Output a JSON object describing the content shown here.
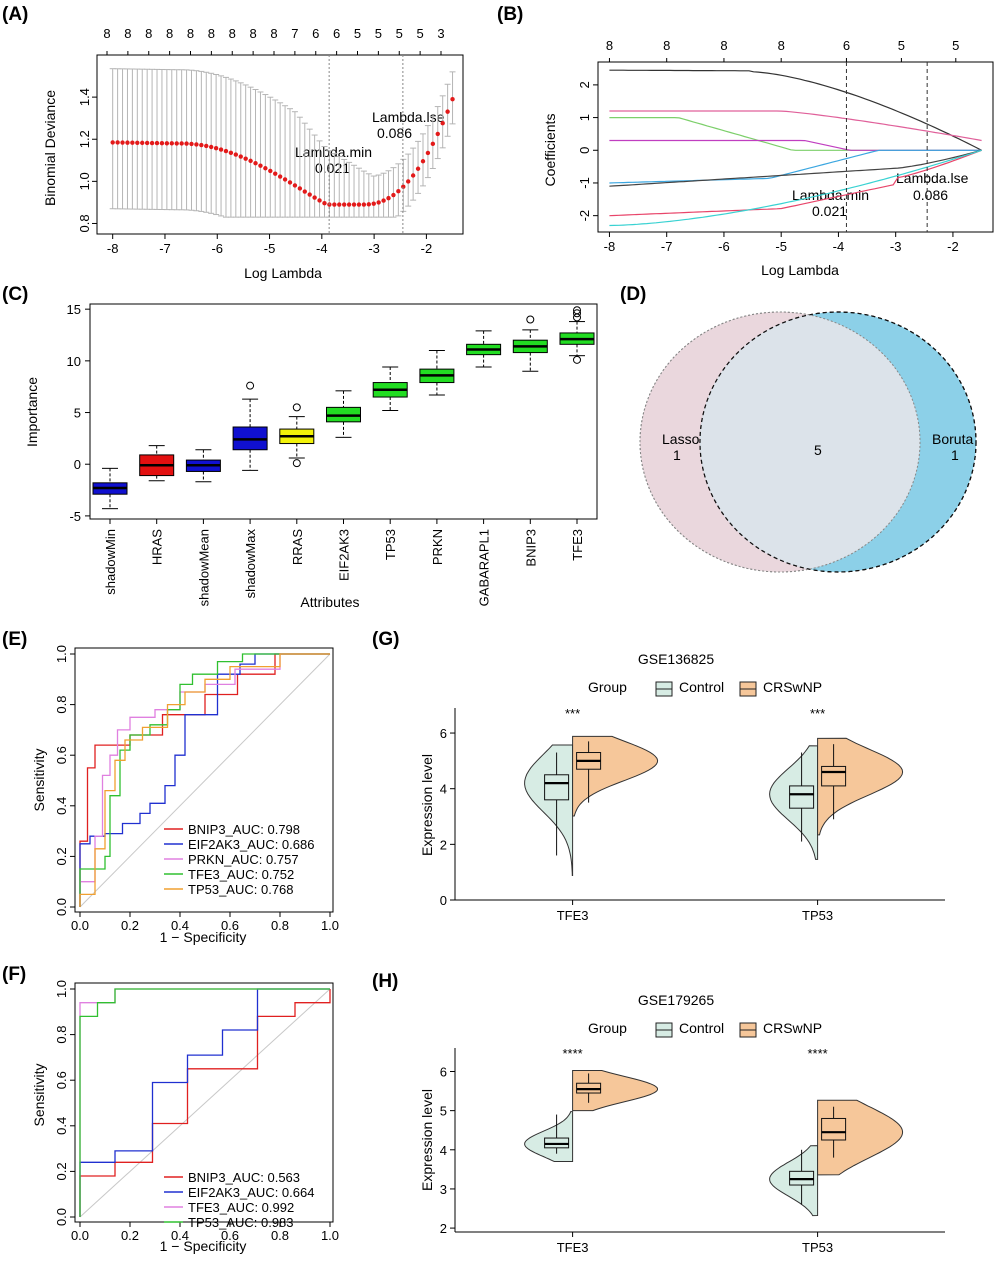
{
  "panels": {
    "A": {
      "label": "(A)"
    },
    "B": {
      "label": "(B)"
    },
    "C": {
      "label": "(C)"
    },
    "D": {
      "label": "(D)"
    },
    "E": {
      "label": "(E)"
    },
    "F": {
      "label": "(F)"
    },
    "G": {
      "label": "(G)"
    },
    "H": {
      "label": "(H)"
    }
  },
  "chart_data": [
    {
      "id": "A",
      "type": "scatter",
      "title": "",
      "xlabel": "Log Lambda",
      "ylabel": "Binomial Deviance",
      "xlim": [
        -8.3,
        -1.3
      ],
      "ylim": [
        0.75,
        1.6
      ],
      "xticks": [
        -8,
        -7,
        -6,
        -5,
        -4,
        -3,
        -2
      ],
      "yticks": [
        0.8,
        1.0,
        1.2,
        1.4
      ],
      "top_ticks": [
        "8",
        "8",
        "8",
        "8",
        "8",
        "8",
        "8",
        "8",
        "8",
        "7",
        "6",
        "6",
        "5",
        "5",
        "5",
        "5",
        "3"
      ],
      "lambda_min": {
        "label": "Lambda.min",
        "value": "0.021",
        "x": -3.86
      },
      "lambda_1se": {
        "label": "Lambda.lse",
        "value": "0.086",
        "x": -2.45
      }
    },
    {
      "id": "B",
      "type": "line",
      "title": "",
      "xlabel": "Log Lambda",
      "ylabel": "Coefficients",
      "xlim": [
        -8.2,
        -1.3
      ],
      "ylim": [
        -2.5,
        2.7
      ],
      "xticks": [
        -8,
        -7,
        -6,
        -5,
        -4,
        -3,
        -2
      ],
      "yticks": [
        -2,
        -1,
        0,
        1,
        2
      ],
      "top_ticks": [
        "8",
        "8",
        "8",
        "8",
        "6",
        "5",
        "5"
      ],
      "lambda_min": {
        "label": "Lambda.min",
        "value": "0.021",
        "x": -3.86
      },
      "lambda_1se": {
        "label": "Lambda.lse",
        "value": "0.086",
        "x": -2.45
      },
      "series": [
        {
          "name": "s1",
          "color": "#333333",
          "start": 2.45
        },
        {
          "name": "s2",
          "color": "#e0609a",
          "start": 1.2
        },
        {
          "name": "s3",
          "color": "#7ccf6a",
          "start": 1.0
        },
        {
          "name": "s4",
          "color": "#c03ec0",
          "start": 0.3
        },
        {
          "name": "s5",
          "color": "#3aa6e0",
          "start": -1.0
        },
        {
          "name": "s6",
          "color": "#444444",
          "start": -1.1
        },
        {
          "name": "s7",
          "color": "#e8456a",
          "start": -2.0
        },
        {
          "name": "s8",
          "color": "#39d2d2",
          "start": -2.3
        }
      ]
    },
    {
      "id": "C",
      "type": "box",
      "title": "",
      "xlabel": "Attributes",
      "ylabel": "Importance",
      "ylim": [
        -5.3,
        15.5
      ],
      "yticks": [
        -5,
        0,
        5,
        10,
        15
      ],
      "categories": [
        "shadowMin",
        "HRAS",
        "shadowMean",
        "shadowMax",
        "RRAS",
        "EIF2AK3",
        "TP53",
        "PRKN",
        "GABARAPL1",
        "BNIP3",
        "TFE3"
      ],
      "colors": [
        "#1010d0",
        "#e31010",
        "#1010d0",
        "#1010d0",
        "#f2f20a",
        "#22dd22",
        "#22dd22",
        "#22dd22",
        "#22dd22",
        "#22dd22",
        "#22dd22"
      ],
      "boxes": [
        {
          "min": -4.3,
          "q1": -2.9,
          "med": -2.3,
          "q3": -1.8,
          "max": -0.4
        },
        {
          "min": -1.6,
          "q1": -1.1,
          "med": -0.1,
          "q3": 0.9,
          "max": 1.8
        },
        {
          "min": -1.7,
          "q1": -0.7,
          "med": -0.1,
          "q3": 0.4,
          "max": 1.4
        },
        {
          "min": -0.6,
          "q1": 1.4,
          "med": 2.4,
          "q3": 3.6,
          "max": 6.3
        },
        {
          "min": 0.6,
          "q1": 2.0,
          "med": 2.7,
          "q3": 3.4,
          "max": 4.6
        },
        {
          "min": 2.6,
          "q1": 4.1,
          "med": 4.7,
          "q3": 5.5,
          "max": 7.1
        },
        {
          "min": 5.2,
          "q1": 6.5,
          "med": 7.2,
          "q3": 7.9,
          "max": 9.4
        },
        {
          "min": 6.7,
          "q1": 7.9,
          "med": 8.6,
          "q3": 9.2,
          "max": 11.0
        },
        {
          "min": 9.4,
          "q1": 10.6,
          "med": 11.1,
          "q3": 11.6,
          "max": 12.9
        },
        {
          "min": 9.0,
          "q1": 10.8,
          "med": 11.4,
          "q3": 12.0,
          "max": 13.0
        },
        {
          "min": 10.5,
          "q1": 11.6,
          "med": 12.1,
          "q3": 12.7,
          "max": 13.8
        }
      ],
      "outliers": [
        [
          3,
          7.6
        ],
        [
          4,
          5.5
        ],
        [
          4,
          0.1
        ],
        [
          9,
          14.0
        ],
        [
          10,
          14.2
        ],
        [
          10,
          14.6
        ],
        [
          10,
          14.9
        ],
        [
          10,
          10.1
        ]
      ]
    },
    {
      "id": "D",
      "type": "venn",
      "sets": [
        {
          "name": "Lasso",
          "only": "1",
          "color": "#ead7dd"
        },
        {
          "name": "Boruta",
          "only": "1",
          "color": "#7fcbe6"
        }
      ],
      "intersection": "5"
    },
    {
      "id": "E",
      "type": "line",
      "title": "",
      "xlabel": "1 − Specificity",
      "ylabel": "Sensitivity",
      "xlim": [
        0,
        1
      ],
      "ylim": [
        0,
        1
      ],
      "xticks": [
        "0.0",
        "0.2",
        "0.4",
        "0.6",
        "0.8",
        "1.0"
      ],
      "yticks": [
        "0.0",
        "0.2",
        "0.4",
        "0.6",
        "0.8",
        "1.0"
      ],
      "legend": [
        {
          "label": "BNIP3_AUC: 0.798",
          "color": "#e02020"
        },
        {
          "label": "EIF2AK3_AUC: 0.686",
          "color": "#2030d0"
        },
        {
          "label": "PRKN_AUC: 0.757",
          "color": "#e080e0"
        },
        {
          "label": "TFE3_AUC: 0.752",
          "color": "#30c030"
        },
        {
          "label": "TP53_AUC: 0.768",
          "color": "#f0a030"
        }
      ],
      "curves": [
        [
          [
            0,
            0
          ],
          [
            0,
            0.26
          ],
          [
            0.03,
            0.26
          ],
          [
            0.03,
            0.55
          ],
          [
            0.06,
            0.55
          ],
          [
            0.06,
            0.64
          ],
          [
            0.2,
            0.64
          ],
          [
            0.2,
            0.68
          ],
          [
            0.33,
            0.68
          ],
          [
            0.33,
            0.76
          ],
          [
            0.5,
            0.76
          ],
          [
            0.5,
            0.84
          ],
          [
            0.63,
            0.84
          ],
          [
            0.63,
            0.92
          ],
          [
            0.78,
            0.92
          ],
          [
            0.78,
            1.0
          ],
          [
            1,
            1
          ]
        ],
        [
          [
            0,
            0
          ],
          [
            0,
            0.25
          ],
          [
            0.04,
            0.25
          ],
          [
            0.04,
            0.28
          ],
          [
            0.1,
            0.28
          ],
          [
            0.1,
            0.29
          ],
          [
            0.17,
            0.29
          ],
          [
            0.17,
            0.33
          ],
          [
            0.24,
            0.33
          ],
          [
            0.24,
            0.37
          ],
          [
            0.28,
            0.37
          ],
          [
            0.28,
            0.41
          ],
          [
            0.34,
            0.41
          ],
          [
            0.34,
            0.48
          ],
          [
            0.38,
            0.48
          ],
          [
            0.38,
            0.6
          ],
          [
            0.42,
            0.6
          ],
          [
            0.42,
            0.76
          ],
          [
            0.55,
            0.76
          ],
          [
            0.55,
            0.92
          ],
          [
            0.64,
            0.92
          ],
          [
            0.64,
            0.96
          ],
          [
            0.7,
            0.96
          ],
          [
            0.7,
            1.0
          ],
          [
            1,
            1
          ]
        ],
        [
          [
            0,
            0
          ],
          [
            0,
            0.1
          ],
          [
            0.06,
            0.1
          ],
          [
            0.06,
            0.28
          ],
          [
            0.09,
            0.28
          ],
          [
            0.09,
            0.52
          ],
          [
            0.12,
            0.52
          ],
          [
            0.12,
            0.6
          ],
          [
            0.15,
            0.6
          ],
          [
            0.15,
            0.7
          ],
          [
            0.2,
            0.7
          ],
          [
            0.2,
            0.75
          ],
          [
            0.3,
            0.75
          ],
          [
            0.3,
            0.78
          ],
          [
            0.4,
            0.78
          ],
          [
            0.4,
            0.85
          ],
          [
            0.5,
            0.85
          ],
          [
            0.5,
            0.88
          ],
          [
            0.62,
            0.88
          ],
          [
            0.62,
            0.94
          ],
          [
            0.8,
            0.94
          ],
          [
            0.8,
            1.0
          ],
          [
            1,
            1
          ]
        ],
        [
          [
            0,
            0
          ],
          [
            0,
            0.15
          ],
          [
            0.1,
            0.15
          ],
          [
            0.1,
            0.2
          ],
          [
            0.12,
            0.2
          ],
          [
            0.12,
            0.44
          ],
          [
            0.16,
            0.44
          ],
          [
            0.16,
            0.62
          ],
          [
            0.2,
            0.62
          ],
          [
            0.2,
            0.68
          ],
          [
            0.28,
            0.68
          ],
          [
            0.28,
            0.72
          ],
          [
            0.35,
            0.72
          ],
          [
            0.35,
            0.78
          ],
          [
            0.4,
            0.78
          ],
          [
            0.4,
            0.88
          ],
          [
            0.45,
            0.88
          ],
          [
            0.45,
            0.92
          ],
          [
            0.55,
            0.92
          ],
          [
            0.55,
            0.97
          ],
          [
            0.65,
            0.97
          ],
          [
            0.65,
            1.0
          ],
          [
            1,
            1
          ]
        ],
        [
          [
            0,
            0
          ],
          [
            0,
            0.05
          ],
          [
            0.06,
            0.05
          ],
          [
            0.06,
            0.23
          ],
          [
            0.1,
            0.23
          ],
          [
            0.1,
            0.46
          ],
          [
            0.14,
            0.46
          ],
          [
            0.14,
            0.58
          ],
          [
            0.18,
            0.58
          ],
          [
            0.18,
            0.66
          ],
          [
            0.25,
            0.66
          ],
          [
            0.25,
            0.71
          ],
          [
            0.35,
            0.71
          ],
          [
            0.35,
            0.8
          ],
          [
            0.42,
            0.8
          ],
          [
            0.42,
            0.85
          ],
          [
            0.5,
            0.85
          ],
          [
            0.5,
            0.9
          ],
          [
            0.6,
            0.9
          ],
          [
            0.6,
            0.95
          ],
          [
            0.8,
            0.95
          ],
          [
            0.8,
            1.0
          ],
          [
            1,
            1
          ]
        ]
      ]
    },
    {
      "id": "F",
      "type": "line",
      "title": "",
      "xlabel": "1 − Specificity",
      "ylabel": "Sensitivity",
      "xlim": [
        0,
        1
      ],
      "ylim": [
        0,
        1
      ],
      "xticks": [
        "0.0",
        "0.2",
        "0.4",
        "0.6",
        "0.8",
        "1.0"
      ],
      "yticks": [
        "0.0",
        "0.2",
        "0.4",
        "0.6",
        "0.8",
        "1.0"
      ],
      "legend": [
        {
          "label": "BNIP3_AUC: 0.563",
          "color": "#e02020"
        },
        {
          "label": "EIF2AK3_AUC: 0.664",
          "color": "#2030d0"
        },
        {
          "label": "TFE3_AUC: 0.992",
          "color": "#e080e0"
        },
        {
          "label": "TP53_AUC: 0.983",
          "color": "#30c030"
        }
      ],
      "curves": [
        [
          [
            0,
            0
          ],
          [
            0,
            0.18
          ],
          [
            0.14,
            0.18
          ],
          [
            0.14,
            0.24
          ],
          [
            0.29,
            0.24
          ],
          [
            0.29,
            0.41
          ],
          [
            0.43,
            0.41
          ],
          [
            0.43,
            0.65
          ],
          [
            0.71,
            0.65
          ],
          [
            0.71,
            0.88
          ],
          [
            0.86,
            0.88
          ],
          [
            0.86,
            0.94
          ],
          [
            1,
            0.94
          ],
          [
            1,
            1
          ]
        ],
        [
          [
            0,
            0
          ],
          [
            0,
            0.24
          ],
          [
            0.14,
            0.24
          ],
          [
            0.14,
            0.29
          ],
          [
            0.29,
            0.29
          ],
          [
            0.29,
            0.59
          ],
          [
            0.43,
            0.59
          ],
          [
            0.43,
            0.71
          ],
          [
            0.57,
            0.71
          ],
          [
            0.57,
            0.82
          ],
          [
            0.71,
            0.82
          ],
          [
            0.71,
            1.0
          ],
          [
            1,
            1
          ]
        ],
        [
          [
            0,
            0
          ],
          [
            0,
            0.94
          ],
          [
            0.14,
            0.94
          ],
          [
            0.14,
            1.0
          ],
          [
            1,
            1
          ]
        ],
        [
          [
            0,
            0
          ],
          [
            0,
            0.88
          ],
          [
            0.07,
            0.88
          ],
          [
            0.07,
            0.94
          ],
          [
            0.14,
            0.94
          ],
          [
            0.14,
            1.0
          ],
          [
            1,
            1
          ]
        ]
      ]
    },
    {
      "id": "G",
      "type": "violin",
      "title": "GSE136825",
      "legend_title": "Group",
      "groups": [
        {
          "name": "Control",
          "color": "#d7ece4"
        },
        {
          "name": "CRSwNP",
          "color": "#f6c79a"
        }
      ],
      "ylabel": "Expression level",
      "ylim": [
        0,
        6.9
      ],
      "yticks": [
        0,
        2,
        4,
        6
      ],
      "categories": [
        "TFE3",
        "TP53"
      ],
      "significance": [
        "***",
        "***"
      ],
      "boxes": {
        "TFE3": {
          "Control": {
            "min": 1.6,
            "q1": 3.6,
            "med": 4.2,
            "q3": 4.5,
            "max": 5.3
          },
          "CRSwNP": {
            "min": 3.5,
            "q1": 4.7,
            "med": 5.0,
            "q3": 5.3,
            "max": 5.7
          }
        },
        "TP53": {
          "Control": {
            "min": 2.1,
            "q1": 3.3,
            "med": 3.8,
            "q3": 4.1,
            "max": 5.3
          },
          "CRSwNP": {
            "min": 2.9,
            "q1": 4.1,
            "med": 4.6,
            "q3": 4.8,
            "max": 5.6
          }
        }
      }
    },
    {
      "id": "H",
      "type": "violin",
      "title": "GSE179265",
      "legend_title": "Group",
      "groups": [
        {
          "name": "Control",
          "color": "#d7ece4"
        },
        {
          "name": "CRSwNP",
          "color": "#f6c79a"
        }
      ],
      "ylabel": "Expression level",
      "ylim": [
        1.9,
        6.6
      ],
      "yticks": [
        2,
        3,
        4,
        5,
        6
      ],
      "categories": [
        "TFE3",
        "TP53"
      ],
      "significance": [
        "****",
        "****"
      ],
      "boxes": {
        "TFE3": {
          "Control": {
            "min": 3.9,
            "q1": 4.05,
            "med": 4.15,
            "q3": 4.3,
            "max": 4.9
          },
          "CRSwNP": {
            "min": 5.2,
            "q1": 5.45,
            "med": 5.55,
            "q3": 5.7,
            "max": 5.95
          }
        },
        "TP53": {
          "Control": {
            "min": 2.6,
            "q1": 3.1,
            "med": 3.25,
            "q3": 3.45,
            "max": 4.0
          },
          "CRSwNP": {
            "min": 3.8,
            "q1": 4.25,
            "med": 4.45,
            "q3": 4.8,
            "max": 5.1
          }
        }
      }
    }
  ]
}
